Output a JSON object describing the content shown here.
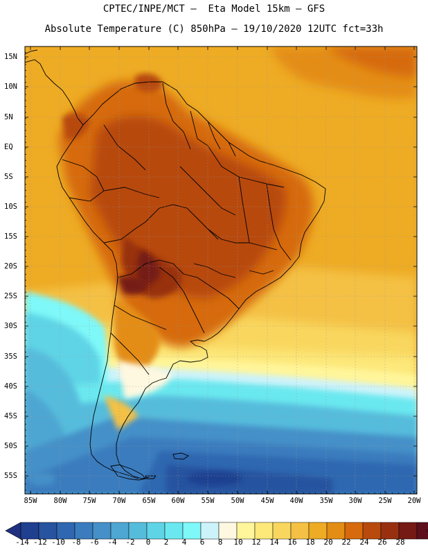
{
  "header": {
    "line1": "CPTEC/INPE/MCT –  Eta Model 15km – GFS",
    "line2": "Absolute Temperature (C) 850hPa – 19/10/2020 12UTC fct=33h"
  },
  "axes": {
    "latitudes": [
      "15N",
      "10N",
      "5N",
      "EQ",
      "5S",
      "10S",
      "15S",
      "20S",
      "25S",
      "30S",
      "35S",
      "40S",
      "45S",
      "50S",
      "55S"
    ],
    "longitudes": [
      "85W",
      "80W",
      "75W",
      "70W",
      "65W",
      "60W",
      "55W",
      "50W",
      "45W",
      "40W",
      "35W",
      "30W",
      "25W",
      "20W"
    ]
  },
  "colorbar": {
    "labels": [
      "-14",
      "-12",
      "-10",
      "-8",
      "-6",
      "-4",
      "-2",
      "0",
      "2",
      "4",
      "6",
      "8",
      "10",
      "12",
      "14",
      "16",
      "18",
      "20",
      "22",
      "24",
      "26",
      "28"
    ],
    "colors": [
      "#1f3f8f",
      "#27539f",
      "#2f67b0",
      "#3a7cbe",
      "#4590c8",
      "#4ea6d2",
      "#56bcdc",
      "#5fd4e6",
      "#6be8ef",
      "#7ef8f8",
      "#cdf3fa",
      "#fff8e0",
      "#fff59a",
      "#fde87a",
      "#f9d75e",
      "#f4c144",
      "#eeab24",
      "#e48d14",
      "#d66a0c",
      "#b74a0c",
      "#983010",
      "#751a14",
      "#5d0f1e"
    ],
    "under_color": "#1f3080",
    "over_color": "#7a0a28"
  },
  "legend_colors": {
    "ocean_warm": "#eeab24",
    "ocean_mid": "#f4c144",
    "land_hot": "#b74a0c",
    "land_hottest": "#751a14",
    "cold_sea": "#3a7cbe",
    "coast_line": "#000000"
  }
}
